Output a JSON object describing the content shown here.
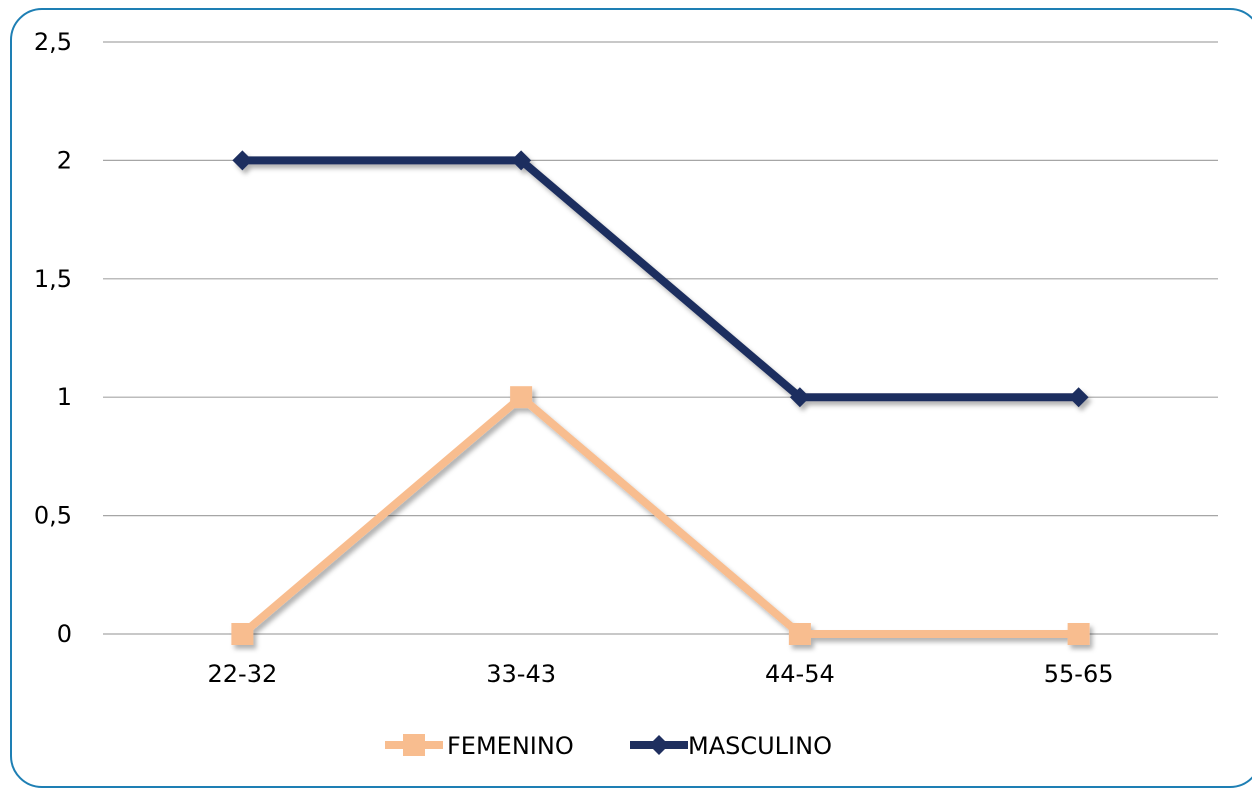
{
  "chart_data": {
    "type": "line",
    "categories": [
      "22-32",
      "33-43",
      "44-54",
      "55-65"
    ],
    "ylim": [
      0,
      2.5
    ],
    "yticks": [
      0,
      0.5,
      1,
      1.5,
      2,
      2.5
    ],
    "ytick_labels": [
      "0",
      "0,5",
      "1",
      "1,5",
      "2",
      "2,5"
    ],
    "grid": "horizontal",
    "legend_placement": "bottom",
    "series": [
      {
        "name": "FEMENINO",
        "values": [
          0,
          1,
          0,
          0
        ],
        "color": "#f8bd8f",
        "marker": "square"
      },
      {
        "name": "MASCULINO",
        "values": [
          2,
          2,
          1,
          1
        ],
        "color": "#1f2f5f",
        "marker": "diamond"
      }
    ],
    "title": "",
    "xlabel": "",
    "ylabel": ""
  },
  "colors": {
    "frame_border": "#1e7fb4",
    "gridline": "#a6a6a6"
  }
}
